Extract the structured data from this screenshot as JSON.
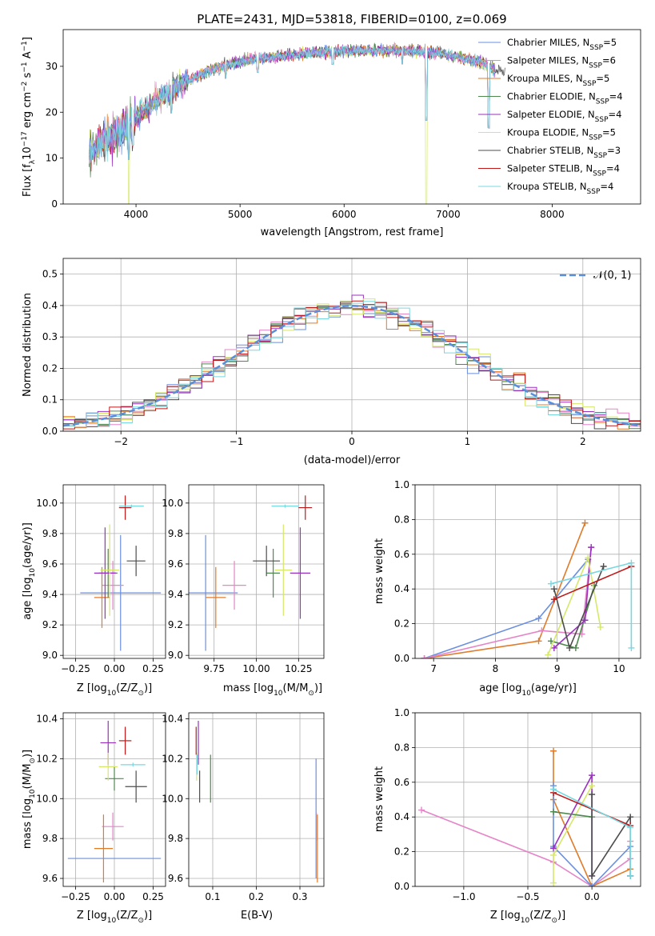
{
  "colors": {
    "chabrier_miles": "#6a8fe0",
    "salpeter_miles": "#e585c8",
    "kroupa_miles": "#e07b2a",
    "chabrier_elodie": "#4e8a4e",
    "salpeter_elodie": "#9b30c0",
    "kroupa_elodie": "#d6e86a",
    "chabrier_stelib": "#4d4d4d",
    "salpeter_stelib": "#c01818",
    "kroupa_stelib": "#78d8e0",
    "normal_curve": "#5b8ed8",
    "grid": "#b0b0b0"
  },
  "chart_data": [
    {
      "id": "spectrum",
      "type": "line",
      "title": "PLATE=2431, MJD=53818, FIBERID=0100, z=0.069",
      "xlabel": "wavelength [Angstrom, rest frame]",
      "ylabel_parts": {
        "pre": "Flux [f",
        "sub": "λ",
        "mid": "10",
        "sup1": "−17",
        "post1": " erg cm",
        "sup2": "−2",
        "post2": " s",
        "sup3": "−1",
        "post3": " A",
        "sup4": "−1",
        "end": "]"
      },
      "xlim": [
        3300,
        8850
      ],
      "ylim": [
        0,
        38
      ],
      "xticks": [
        4000,
        5000,
        6000,
        7000,
        8000
      ],
      "yticks": [
        0,
        10,
        20,
        30
      ],
      "grid": false,
      "legend_position": "top-right",
      "legend": [
        {
          "pre": "Chabrier MILES, N",
          "sub": "SSP",
          "post": "=5",
          "color_key": "chabrier_miles"
        },
        {
          "pre": "Salpeter MILES, N",
          "sub": "SSP",
          "post": "=6",
          "color_key": "salpeter_miles"
        },
        {
          "pre": "Kroupa MILES, N",
          "sub": "SSP",
          "post": "=5",
          "color_key": "kroupa_miles"
        },
        {
          "pre": "Chabrier ELODIE, N",
          "sub": "SSP",
          "post": "=4",
          "color_key": "chabrier_elodie"
        },
        {
          "pre": "Salpeter ELODIE, N",
          "sub": "SSP",
          "post": "=4",
          "color_key": "salpeter_elodie"
        },
        {
          "pre": "Kroupa ELODIE, N",
          "sub": "SSP",
          "post": "=5",
          "color_key": "kroupa_elodie"
        },
        {
          "pre": "Chabrier STELIB, N",
          "sub": "SSP",
          "post": "=3",
          "color_key": "chabrier_stelib"
        },
        {
          "pre": "Salpeter STELIB, N",
          "sub": "SSP",
          "post": "=4",
          "color_key": "salpeter_stelib"
        },
        {
          "pre": "Kroupa STELIB, N",
          "sub": "SSP",
          "post": "=4",
          "color_key": "kroupa_stelib"
        }
      ],
      "envelope": {
        "x": [
          3550,
          3700,
          3850,
          4000,
          4150,
          4300,
          4500,
          4700,
          4900,
          5100,
          5300,
          5500,
          5700,
          5900,
          6100,
          6300,
          6500,
          6700,
          6900,
          7100,
          7300,
          7400,
          7500
        ],
        "y": [
          11,
          14,
          16,
          19,
          22,
          24,
          27,
          29,
          30.5,
          31.5,
          32,
          32.5,
          33,
          33.2,
          33.5,
          33.5,
          33.5,
          33.3,
          33,
          32,
          31,
          30,
          29
        ]
      },
      "dips": [
        {
          "x": 3930,
          "y": 0
        },
        {
          "x": 3970,
          "y": 6
        },
        {
          "x": 4340,
          "y": 14
        },
        {
          "x": 4860,
          "y": 24
        },
        {
          "x": 5170,
          "y": 25
        },
        {
          "x": 5890,
          "y": 27
        },
        {
          "x": 6560,
          "y": 27
        },
        {
          "x": 6790,
          "y": 0
        },
        {
          "x": 7390,
          "y": 0
        },
        {
          "x": 7600,
          "y": 27
        }
      ]
    },
    {
      "id": "residuals",
      "type": "histogram",
      "xlabel": "(data-model)/error",
      "ylabel": "Normed distribution",
      "xlim": [
        -2.5,
        2.5
      ],
      "ylim": [
        0,
        0.55
      ],
      "xticks": [
        -2,
        -1,
        0,
        1,
        2
      ],
      "xtick_labels": [
        "−2",
        "−1",
        "0",
        "1",
        "2"
      ],
      "yticks": [
        0.0,
        0.1,
        0.2,
        0.3,
        0.4,
        0.5
      ],
      "ytick_labels": [
        "0.0",
        "0.1",
        "0.2",
        "0.3",
        "0.4",
        "0.5"
      ],
      "grid": true,
      "legend_label": "𝒩(0, 1)",
      "legend_position": "top-right",
      "bin_width": 0.1
    },
    {
      "id": "z_age",
      "type": "errorbar",
      "xlabel_parts": {
        "pre": "Z [log",
        "sub": "10",
        "post": "(Z/Z",
        "sub2": "⊙",
        "end": ")]"
      },
      "ylabel_parts": {
        "pre": "age  [log",
        "sub": "10",
        "post": "(age/yr)]"
      },
      "xlim": [
        -0.33,
        0.33
      ],
      "ylim": [
        8.98,
        10.12
      ],
      "xticks": [
        -0.25,
        0.0,
        0.25
      ],
      "xtick_labels": [
        "−0.25",
        "0.00",
        "0.25"
      ],
      "yticks": [
        9.0,
        9.2,
        9.4,
        9.6,
        9.8,
        10.0
      ],
      "ytick_labels": [
        "9.0",
        "9.2",
        "9.4",
        "9.6",
        "9.8",
        "10.0"
      ],
      "grid": true,
      "points": [
        {
          "key": "chabrier_miles",
          "x": 0.04,
          "xerr": 0.26,
          "y": 9.41,
          "yerr": 0.38
        },
        {
          "key": "salpeter_miles",
          "x": -0.01,
          "xerr": 0.07,
          "y": 9.46,
          "yerr": 0.16
        },
        {
          "key": "kroupa_miles",
          "x": -0.08,
          "xerr": 0.05,
          "y": 9.38,
          "yerr": 0.2
        },
        {
          "key": "chabrier_elodie",
          "x": -0.04,
          "xerr": 0.06,
          "y": 9.54,
          "yerr": 0.16
        },
        {
          "key": "salpeter_elodie",
          "x": -0.06,
          "xerr": 0.07,
          "y": 9.54,
          "yerr": 0.3
        },
        {
          "key": "kroupa_elodie",
          "x": -0.03,
          "xerr": 0.06,
          "y": 9.56,
          "yerr": 0.3
        },
        {
          "key": "chabrier_stelib",
          "x": 0.14,
          "xerr": 0.06,
          "y": 9.62,
          "yerr": 0.1
        },
        {
          "key": "salpeter_stelib",
          "x": 0.07,
          "xerr": 0.04,
          "y": 9.97,
          "yerr": 0.08
        },
        {
          "key": "kroupa_stelib",
          "x": 0.11,
          "xerr": 0.08,
          "y": 9.98,
          "yerr": 0.01
        }
      ]
    },
    {
      "id": "mass_age",
      "type": "errorbar",
      "xlabel_parts": {
        "pre": "mass [log",
        "sub": "10",
        "post": "(M/M",
        "sub2": "⊙",
        "end": ")]"
      },
      "xlim": [
        9.6,
        10.4
      ],
      "ylim": [
        8.98,
        10.12
      ],
      "xticks": [
        9.75,
        10.0,
        10.25
      ],
      "xtick_labels": [
        "9.75",
        "10.00",
        "10.25"
      ],
      "yticks": [
        9.0,
        9.2,
        9.4,
        9.6,
        9.8,
        10.0
      ],
      "ytick_labels": [
        "9.0",
        "9.2",
        "9.4",
        "9.6",
        "9.8",
        "10.0"
      ],
      "grid": true,
      "points": [
        {
          "key": "chabrier_miles",
          "x": 9.7,
          "xerr": 0.19,
          "y": 9.41,
          "yerr": 0.38
        },
        {
          "key": "salpeter_miles",
          "x": 9.87,
          "xerr": 0.07,
          "y": 9.46,
          "yerr": 0.16
        },
        {
          "key": "kroupa_miles",
          "x": 9.76,
          "xerr": 0.06,
          "y": 9.38,
          "yerr": 0.2
        },
        {
          "key": "chabrier_elodie",
          "x": 10.1,
          "xerr": 0.04,
          "y": 9.54,
          "yerr": 0.16
        },
        {
          "key": "salpeter_elodie",
          "x": 10.26,
          "xerr": 0.06,
          "y": 9.54,
          "yerr": 0.3
        },
        {
          "key": "kroupa_elodie",
          "x": 10.16,
          "xerr": 0.05,
          "y": 9.56,
          "yerr": 0.3
        },
        {
          "key": "chabrier_stelib",
          "x": 10.06,
          "xerr": 0.08,
          "y": 9.62,
          "yerr": 0.1
        },
        {
          "key": "salpeter_stelib",
          "x": 10.29,
          "xerr": 0.04,
          "y": 9.97,
          "yerr": 0.08
        },
        {
          "key": "kroupa_stelib",
          "x": 10.17,
          "xerr": 0.08,
          "y": 9.98,
          "yerr": 0.01
        }
      ]
    },
    {
      "id": "mw_age",
      "type": "line",
      "xlabel_parts": {
        "pre": "age  [log",
        "sub": "10",
        "post": "(age/yr)]"
      },
      "ylabel": "mass weight",
      "xlim": [
        6.7,
        10.35
      ],
      "ylim": [
        0,
        1
      ],
      "xticks": [
        7,
        8,
        9,
        10
      ],
      "yticks": [
        0.0,
        0.2,
        0.4,
        0.6,
        0.8,
        1.0
      ],
      "ytick_labels": [
        "0.0",
        "0.2",
        "0.4",
        "0.6",
        "0.8",
        "1.0"
      ],
      "grid": true,
      "series": [
        {
          "key": "kroupa_miles",
          "x": [
            6.85,
            8.7,
            9.45
          ],
          "y": [
            0.0,
            0.1,
            0.78
          ]
        },
        {
          "key": "chabrier_miles",
          "x": [
            6.85,
            8.7,
            9.5
          ],
          "y": [
            0.0,
            0.23,
            0.57
          ]
        },
        {
          "key": "salpeter_miles",
          "x": [
            6.85,
            8.75,
            9.4,
            9.55
          ],
          "y": [
            0.0,
            0.16,
            0.14,
            0.64
          ]
        },
        {
          "key": "chabrier_elodie",
          "x": [
            8.9,
            9.3,
            9.6
          ],
          "y": [
            0.1,
            0.06,
            0.42
          ]
        },
        {
          "key": "salpeter_elodie",
          "x": [
            8.95,
            9.45,
            9.55
          ],
          "y": [
            0.06,
            0.22,
            0.64
          ]
        },
        {
          "key": "kroupa_elodie",
          "x": [
            8.85,
            9.5,
            9.7
          ],
          "y": [
            0.02,
            0.58,
            0.18
          ]
        },
        {
          "key": "chabrier_stelib",
          "x": [
            8.95,
            9.2,
            9.75
          ],
          "y": [
            0.4,
            0.06,
            0.53
          ]
        },
        {
          "key": "salpeter_stelib",
          "x": [
            8.95,
            10.2
          ],
          "y": [
            0.34,
            0.53
          ]
        },
        {
          "key": "kroupa_stelib",
          "x": [
            8.9,
            10.2,
            10.2
          ],
          "y": [
            0.43,
            0.55,
            0.06
          ]
        }
      ]
    },
    {
      "id": "z_mass",
      "type": "errorbar",
      "xlabel_parts": {
        "pre": "Z [log",
        "sub": "10",
        "post": "(Z/Z",
        "sub2": "⊙",
        "end": ")]"
      },
      "ylabel_parts": {
        "pre": "mass [log",
        "sub": "10",
        "post": "(M/M",
        "sub2": "⊙",
        "end": ")]"
      },
      "xlim": [
        -0.33,
        0.33
      ],
      "ylim": [
        9.56,
        10.43
      ],
      "xticks": [
        -0.25,
        0.0,
        0.25
      ],
      "xtick_labels": [
        "−0.25",
        "0.00",
        "0.25"
      ],
      "yticks": [
        9.6,
        9.8,
        10.0,
        10.2,
        10.4
      ],
      "ytick_labels": [
        "9.6",
        "9.8",
        "10.0",
        "10.2",
        "10.4"
      ],
      "grid": true,
      "points": [
        {
          "key": "chabrier_miles",
          "x": 0.0,
          "xerr": 0.3,
          "y": 9.7,
          "yerr": 0.0
        },
        {
          "key": "salpeter_miles",
          "x": -0.01,
          "xerr": 0.07,
          "y": 9.86,
          "yerr": 0.07
        },
        {
          "key": "kroupa_miles",
          "x": -0.07,
          "xerr": 0.06,
          "y": 9.75,
          "yerr": 0.17
        },
        {
          "key": "chabrier_elodie",
          "x": 0.0,
          "xerr": 0.06,
          "y": 10.1,
          "yerr": 0.06
        },
        {
          "key": "salpeter_elodie",
          "x": -0.04,
          "xerr": 0.05,
          "y": 10.28,
          "yerr": 0.11
        },
        {
          "key": "kroupa_elodie",
          "x": -0.04,
          "xerr": 0.06,
          "y": 10.16,
          "yerr": 0.07
        },
        {
          "key": "chabrier_stelib",
          "x": 0.14,
          "xerr": 0.07,
          "y": 10.06,
          "yerr": 0.08
        },
        {
          "key": "salpeter_stelib",
          "x": 0.07,
          "xerr": 0.04,
          "y": 10.29,
          "yerr": 0.07
        },
        {
          "key": "kroupa_stelib",
          "x": 0.12,
          "xerr": 0.08,
          "y": 10.17,
          "yerr": 0.01
        }
      ]
    },
    {
      "id": "ebv_mass",
      "type": "errorbar",
      "xlabel": "E(B-V)",
      "xlim": [
        0.045,
        0.355
      ],
      "ylim": [
        9.56,
        10.43
      ],
      "xticks": [
        0.1,
        0.2,
        0.3
      ],
      "xtick_labels": [
        "0.1",
        "0.2",
        "0.3"
      ],
      "yticks": [
        9.6,
        9.8,
        10.0,
        10.2,
        10.4
      ],
      "ytick_labels": [
        "9.6",
        "9.8",
        "10.0",
        "10.2",
        "10.4"
      ],
      "grid": true,
      "points": [
        {
          "key": "chabrier_miles",
          "x": 0.337,
          "xerr": 0.0,
          "y": 9.9,
          "yerr": 0.3
        },
        {
          "key": "salpeter_miles",
          "x": 0.338,
          "xerr": 0.0,
          "y": 9.86,
          "yerr": 0.07
        },
        {
          "key": "kroupa_miles",
          "x": 0.34,
          "xerr": 0.0,
          "y": 9.75,
          "yerr": 0.17
        },
        {
          "key": "chabrier_elodie",
          "x": 0.095,
          "xerr": 0.0,
          "y": 10.1,
          "yerr": 0.12
        },
        {
          "key": "salpeter_elodie",
          "x": 0.067,
          "xerr": 0.0,
          "y": 10.28,
          "yerr": 0.11
        },
        {
          "key": "kroupa_elodie",
          "x": 0.063,
          "xerr": 0.0,
          "y": 10.16,
          "yerr": 0.07
        },
        {
          "key": "chabrier_stelib",
          "x": 0.07,
          "xerr": 0.0,
          "y": 10.06,
          "yerr": 0.08
        },
        {
          "key": "salpeter_stelib",
          "x": 0.062,
          "xerr": 0.0,
          "y": 10.29,
          "yerr": 0.07
        },
        {
          "key": "kroupa_stelib",
          "x": 0.064,
          "xerr": 0.0,
          "y": 10.17,
          "yerr": 0.05
        }
      ]
    },
    {
      "id": "mw_z",
      "type": "line",
      "xlabel_parts": {
        "pre": "Z [log",
        "sub": "10",
        "post": "(Z/Z",
        "sub2": "⊙",
        "end": ")]"
      },
      "ylabel": "mass weight",
      "xlim": [
        -1.38,
        0.38
      ],
      "ylim": [
        0,
        1
      ],
      "xticks": [
        -1.0,
        -0.5,
        0.0
      ],
      "xtick_labels": [
        "−1.0",
        "−0.5",
        "0.0"
      ],
      "yticks": [
        0.0,
        0.2,
        0.4,
        0.6,
        0.8,
        1.0
      ],
      "ytick_labels": [
        "0.0",
        "0.2",
        "0.4",
        "0.6",
        "0.8",
        "1.0"
      ],
      "grid": true,
      "series": [
        {
          "key": "salpeter_miles",
          "x": [
            -1.33,
            -0.3,
            0.0,
            0.3,
            0.3
          ],
          "y": [
            0.44,
            0.14,
            0.0,
            0.16,
            0.26
          ]
        },
        {
          "key": "kroupa_miles",
          "x": [
            -0.3,
            -0.3,
            0.0,
            0.3
          ],
          "y": [
            0.78,
            0.5,
            0.0,
            0.1
          ]
        },
        {
          "key": "chabrier_miles",
          "x": [
            -0.3,
            -0.3,
            0.0,
            0.3,
            0.3
          ],
          "y": [
            0.58,
            0.23,
            0.0,
            0.23,
            0.06
          ]
        },
        {
          "key": "salpeter_elodie",
          "x": [
            -0.3,
            0.0,
            0.0
          ],
          "y": [
            0.22,
            0.64,
            0.06
          ]
        },
        {
          "key": "kroupa_elodie",
          "x": [
            -0.3,
            -0.3,
            0.0
          ],
          "y": [
            0.02,
            0.18,
            0.58
          ]
        },
        {
          "key": "chabrier_elodie",
          "x": [
            -0.3,
            0.0
          ],
          "y": [
            0.43,
            0.4
          ]
        },
        {
          "key": "chabrier_stelib",
          "x": [
            0.0,
            0.0,
            0.3,
            0.3
          ],
          "y": [
            0.53,
            0.06,
            0.4,
            0.06
          ]
        },
        {
          "key": "salpeter_stelib",
          "x": [
            -0.3,
            0.3
          ],
          "y": [
            0.54,
            0.35
          ]
        },
        {
          "key": "kroupa_stelib",
          "x": [
            -0.3,
            0.3,
            0.3
          ],
          "y": [
            0.56,
            0.34,
            0.06
          ]
        }
      ]
    }
  ]
}
